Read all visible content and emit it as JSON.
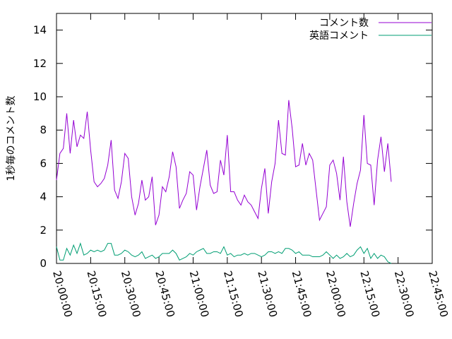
{
  "chart_data": {
    "type": "line",
    "title": "",
    "xlabel": "",
    "ylabel": "1秒毎のコメント数",
    "ylim": [
      0,
      15
    ],
    "yticks": [
      0,
      2,
      4,
      6,
      8,
      10,
      12,
      14
    ],
    "xlim": [
      "20:00:00",
      "22:45:00"
    ],
    "xticks": [
      "20:00:00",
      "20:15:00",
      "20:30:00",
      "20:45:00",
      "21:00:00",
      "21:15:00",
      "21:30:00",
      "21:45:00",
      "22:00:00",
      "22:15:00",
      "22:30:00",
      "22:45:00"
    ],
    "grid": false,
    "legend_position": "top-right",
    "series": [
      {
        "name": "コメント数",
        "color": "#9400d3",
        "points": [
          [
            "20:00:00",
            5.0
          ],
          [
            "20:01:30",
            6.6
          ],
          [
            "20:03:00",
            6.9
          ],
          [
            "20:04:30",
            9.0
          ],
          [
            "20:06:00",
            6.6
          ],
          [
            "20:07:30",
            8.6
          ],
          [
            "20:09:00",
            7.0
          ],
          [
            "20:10:30",
            7.7
          ],
          [
            "20:12:00",
            7.5
          ],
          [
            "20:13:30",
            9.1
          ],
          [
            "20:15:00",
            6.8
          ],
          [
            "20:16:30",
            4.9
          ],
          [
            "20:18:00",
            4.6
          ],
          [
            "20:19:30",
            4.8
          ],
          [
            "20:21:00",
            5.1
          ],
          [
            "20:22:30",
            5.9
          ],
          [
            "20:24:00",
            7.4
          ],
          [
            "20:25:30",
            4.4
          ],
          [
            "20:27:00",
            3.9
          ],
          [
            "20:28:30",
            4.9
          ],
          [
            "20:30:00",
            6.6
          ],
          [
            "20:31:30",
            6.3
          ],
          [
            "20:33:00",
            4.0
          ],
          [
            "20:34:30",
            2.9
          ],
          [
            "20:36:00",
            3.6
          ],
          [
            "20:37:30",
            5.0
          ],
          [
            "20:39:00",
            3.8
          ],
          [
            "20:40:30",
            4.0
          ],
          [
            "20:42:00",
            5.2
          ],
          [
            "20:43:30",
            2.3
          ],
          [
            "20:45:00",
            2.9
          ],
          [
            "20:46:30",
            4.6
          ],
          [
            "20:48:00",
            4.3
          ],
          [
            "20:49:30",
            5.2
          ],
          [
            "20:51:00",
            6.7
          ],
          [
            "20:52:30",
            5.8
          ],
          [
            "20:54:00",
            3.3
          ],
          [
            "20:55:30",
            3.8
          ],
          [
            "20:57:00",
            4.2
          ],
          [
            "20:58:30",
            5.5
          ],
          [
            "21:00:00",
            5.3
          ],
          [
            "21:01:30",
            3.2
          ],
          [
            "21:03:00",
            4.6
          ],
          [
            "21:04:30",
            5.7
          ],
          [
            "21:06:00",
            6.8
          ],
          [
            "21:07:30",
            4.7
          ],
          [
            "21:09:00",
            4.2
          ],
          [
            "21:10:30",
            4.3
          ],
          [
            "21:12:00",
            6.2
          ],
          [
            "21:13:30",
            5.3
          ],
          [
            "21:15:00",
            7.7
          ],
          [
            "21:16:30",
            4.3
          ],
          [
            "21:18:00",
            4.3
          ],
          [
            "21:19:30",
            3.8
          ],
          [
            "21:21:00",
            3.5
          ],
          [
            "21:22:30",
            4.1
          ],
          [
            "21:24:00",
            3.7
          ],
          [
            "21:25:30",
            3.5
          ],
          [
            "21:27:00",
            3.1
          ],
          [
            "21:28:30",
            2.7
          ],
          [
            "21:30:00",
            4.5
          ],
          [
            "21:31:30",
            5.7
          ],
          [
            "21:33:00",
            3.0
          ],
          [
            "21:34:30",
            4.9
          ],
          [
            "21:36:00",
            6.0
          ],
          [
            "21:37:30",
            8.6
          ],
          [
            "21:39:00",
            6.6
          ],
          [
            "21:40:30",
            6.5
          ],
          [
            "21:42:00",
            9.8
          ],
          [
            "21:43:30",
            8.1
          ],
          [
            "21:45:00",
            5.8
          ],
          [
            "21:46:30",
            5.9
          ],
          [
            "21:48:00",
            7.2
          ],
          [
            "21:49:30",
            5.9
          ],
          [
            "21:51:00",
            6.6
          ],
          [
            "21:52:30",
            6.2
          ],
          [
            "21:54:00",
            4.4
          ],
          [
            "21:55:30",
            2.6
          ],
          [
            "21:57:00",
            3.0
          ],
          [
            "21:58:30",
            3.4
          ],
          [
            "22:00:00",
            5.9
          ],
          [
            "22:01:30",
            6.2
          ],
          [
            "22:03:00",
            5.4
          ],
          [
            "22:04:30",
            3.8
          ],
          [
            "22:06:00",
            6.4
          ],
          [
            "22:07:30",
            3.7
          ],
          [
            "22:09:00",
            2.2
          ],
          [
            "22:10:30",
            3.6
          ],
          [
            "22:12:00",
            4.8
          ],
          [
            "22:13:30",
            5.6
          ],
          [
            "22:15:00",
            8.9
          ],
          [
            "22:16:30",
            6.0
          ],
          [
            "22:18:00",
            5.9
          ],
          [
            "22:19:30",
            3.5
          ],
          [
            "22:21:00",
            6.2
          ],
          [
            "22:22:30",
            7.6
          ],
          [
            "22:24:00",
            5.5
          ],
          [
            "22:25:30",
            7.2
          ],
          [
            "22:27:00",
            4.9
          ]
        ]
      },
      {
        "name": "英語コメント",
        "color": "#009e73",
        "points": [
          [
            "20:00:00",
            1.0
          ],
          [
            "20:01:30",
            0.2
          ],
          [
            "20:03:00",
            0.2
          ],
          [
            "20:04:30",
            0.9
          ],
          [
            "20:06:00",
            0.5
          ],
          [
            "20:07:30",
            1.1
          ],
          [
            "20:09:00",
            0.6
          ],
          [
            "20:10:30",
            1.2
          ],
          [
            "20:12:00",
            0.5
          ],
          [
            "20:13:30",
            0.6
          ],
          [
            "20:15:00",
            0.8
          ],
          [
            "20:16:30",
            0.7
          ],
          [
            "20:18:00",
            0.8
          ],
          [
            "20:19:30",
            0.7
          ],
          [
            "20:21:00",
            0.8
          ],
          [
            "20:22:30",
            1.2
          ],
          [
            "20:24:00",
            1.2
          ],
          [
            "20:25:30",
            0.5
          ],
          [
            "20:27:00",
            0.5
          ],
          [
            "20:28:30",
            0.6
          ],
          [
            "20:30:00",
            0.8
          ],
          [
            "20:31:30",
            0.7
          ],
          [
            "20:33:00",
            0.5
          ],
          [
            "20:34:30",
            0.4
          ],
          [
            "20:36:00",
            0.5
          ],
          [
            "20:37:30",
            0.7
          ],
          [
            "20:39:00",
            0.3
          ],
          [
            "20:40:30",
            0.4
          ],
          [
            "20:42:00",
            0.5
          ],
          [
            "20:43:30",
            0.3
          ],
          [
            "20:45:00",
            0.4
          ],
          [
            "20:46:30",
            0.6
          ],
          [
            "20:48:00",
            0.6
          ],
          [
            "20:49:30",
            0.6
          ],
          [
            "20:51:00",
            0.8
          ],
          [
            "20:52:30",
            0.6
          ],
          [
            "20:54:00",
            0.2
          ],
          [
            "20:55:30",
            0.3
          ],
          [
            "20:57:00",
            0.4
          ],
          [
            "20:58:30",
            0.6
          ],
          [
            "21:00:00",
            0.5
          ],
          [
            "21:01:30",
            0.7
          ],
          [
            "21:03:00",
            0.8
          ],
          [
            "21:04:30",
            0.9
          ],
          [
            "21:06:00",
            0.6
          ],
          [
            "21:07:30",
            0.6
          ],
          [
            "21:09:00",
            0.7
          ],
          [
            "21:10:30",
            0.7
          ],
          [
            "21:12:00",
            0.6
          ],
          [
            "21:13:30",
            1.0
          ],
          [
            "21:15:00",
            0.5
          ],
          [
            "21:16:30",
            0.6
          ],
          [
            "21:18:00",
            0.4
          ],
          [
            "21:19:30",
            0.5
          ],
          [
            "21:21:00",
            0.5
          ],
          [
            "21:22:30",
            0.6
          ],
          [
            "21:24:00",
            0.5
          ],
          [
            "21:25:30",
            0.6
          ],
          [
            "21:27:00",
            0.6
          ],
          [
            "21:28:30",
            0.5
          ],
          [
            "21:30:00",
            0.4
          ],
          [
            "21:31:30",
            0.5
          ],
          [
            "21:33:00",
            0.7
          ],
          [
            "21:34:30",
            0.7
          ],
          [
            "21:36:00",
            0.6
          ],
          [
            "21:37:30",
            0.7
          ],
          [
            "21:39:00",
            0.6
          ],
          [
            "21:40:30",
            0.9
          ],
          [
            "21:42:00",
            0.9
          ],
          [
            "21:43:30",
            0.8
          ],
          [
            "21:45:00",
            0.6
          ],
          [
            "21:46:30",
            0.7
          ],
          [
            "21:48:00",
            0.5
          ],
          [
            "21:49:30",
            0.5
          ],
          [
            "21:51:00",
            0.5
          ],
          [
            "21:52:30",
            0.4
          ],
          [
            "21:54:00",
            0.4
          ],
          [
            "21:55:30",
            0.4
          ],
          [
            "21:57:00",
            0.5
          ],
          [
            "21:58:30",
            0.7
          ],
          [
            "22:00:00",
            0.5
          ],
          [
            "22:01:30",
            0.3
          ],
          [
            "22:03:00",
            0.5
          ],
          [
            "22:04:30",
            0.3
          ],
          [
            "22:06:00",
            0.4
          ],
          [
            "22:07:30",
            0.6
          ],
          [
            "22:09:00",
            0.4
          ],
          [
            "22:10:30",
            0.5
          ],
          [
            "22:12:00",
            0.8
          ],
          [
            "22:13:30",
            1.0
          ],
          [
            "22:15:00",
            0.6
          ],
          [
            "22:16:30",
            0.9
          ],
          [
            "22:18:00",
            0.3
          ],
          [
            "22:19:30",
            0.6
          ],
          [
            "22:21:00",
            0.3
          ],
          [
            "22:22:30",
            0.5
          ],
          [
            "22:24:00",
            0.4
          ],
          [
            "22:25:30",
            0.1
          ],
          [
            "22:27:00",
            0.0
          ]
        ]
      }
    ]
  }
}
